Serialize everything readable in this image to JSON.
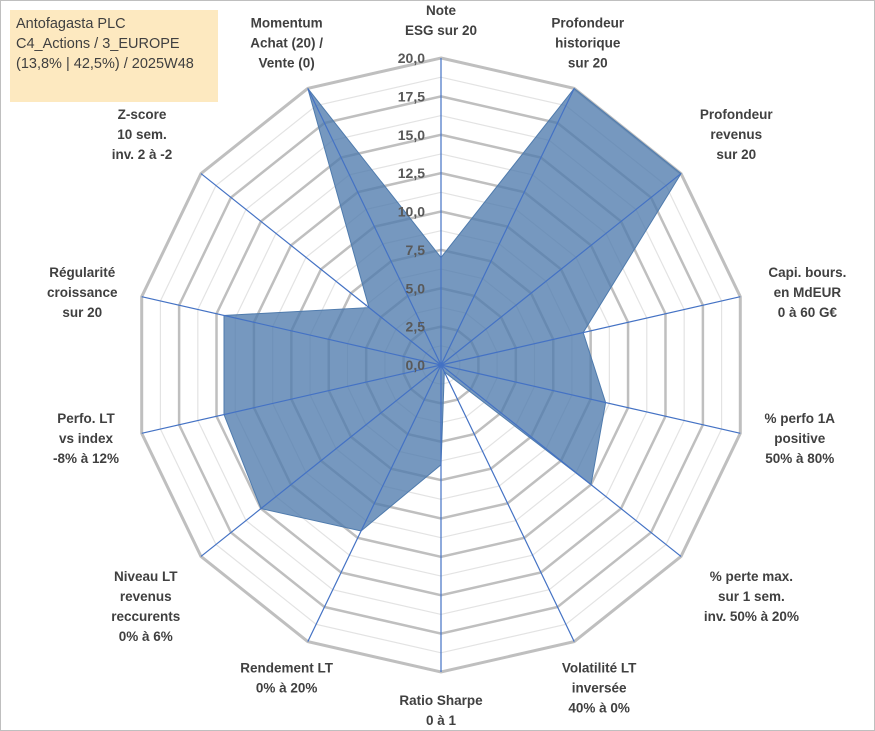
{
  "title": {
    "line1": "Antofagasta PLC",
    "line2": "C4_Actions / 3_EUROPE",
    "line3": "(13,8% | 42,5%) / 2025W48"
  },
  "colors": {
    "fill": "#4f7bad",
    "spoke": "#4472c4",
    "grid_major": "#bfbfbf",
    "grid_minor": "#e3e3e3",
    "title_bg": "#fde9c0"
  },
  "chart_data": {
    "type": "radar",
    "rmin": 0,
    "rmax": 20,
    "tick_values": [
      0,
      2.5,
      5,
      7.5,
      10,
      12.5,
      15,
      17.5,
      20
    ],
    "tick_labels": [
      "0,0",
      "2,5",
      "5,0",
      "7,5",
      "10,0",
      "12,5",
      "15,0",
      "17,5",
      "20,0"
    ],
    "categories": [
      [
        "Note",
        "ESG sur 20"
      ],
      [
        "Profondeur",
        "historique",
        "sur 20"
      ],
      [
        "Profondeur",
        "revenus",
        "sur 20"
      ],
      [
        "Capi. bours.",
        "en MdEUR",
        "0 à 60 G€"
      ],
      [
        "% perfo 1A",
        "positive",
        "50% à 80%"
      ],
      [
        "% perte max.",
        "sur 1 sem.",
        "inv. 50% à 20%"
      ],
      [
        "Volatilité LT",
        "inversée",
        "40% à 0%"
      ],
      [
        "Ratio Sharpe",
        "0 à 1"
      ],
      [
        "Rendement LT",
        "0% à 20%"
      ],
      [
        "Niveau LT",
        "revenus",
        "reccurents",
        "0% à 6%"
      ],
      [
        "Perfo. LT",
        "vs index",
        "-8% à 12%"
      ],
      [
        "Régularité",
        "croissance",
        "sur 20"
      ],
      [
        "Z-score",
        "10 sem.",
        "inv. 2 à -2"
      ],
      [
        "Momentum",
        "Achat (20) /",
        "Vente (0)"
      ]
    ],
    "series": [
      {
        "name": "Antofagasta PLC",
        "values": [
          7,
          20,
          20,
          9.5,
          11,
          12.5,
          0.5,
          6.5,
          12,
          15,
          14.5,
          14.5,
          6,
          20
        ]
      }
    ]
  }
}
